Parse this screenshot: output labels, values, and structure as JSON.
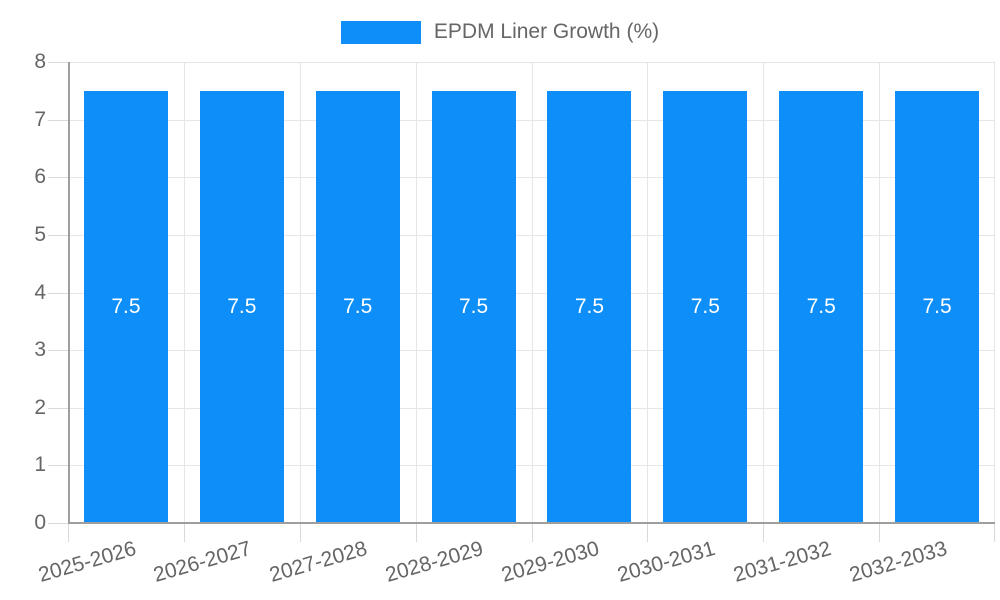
{
  "legend": {
    "label": "EPDM Liner Growth (%)"
  },
  "chart_data": {
    "type": "bar",
    "title": "",
    "categories": [
      "2025-2026",
      "2026-2027",
      "2027-2028",
      "2028-2029",
      "2029-2030",
      "2030-2031",
      "2031-2032",
      "2032-2033"
    ],
    "series": [
      {
        "name": "EPDM Liner Growth (%)",
        "values": [
          7.5,
          7.5,
          7.5,
          7.5,
          7.5,
          7.5,
          7.5,
          7.5
        ]
      }
    ],
    "bar_labels": [
      "7.5",
      "7.5",
      "7.5",
      "7.5",
      "7.5",
      "7.5",
      "7.5",
      "7.5"
    ],
    "xlabel": "",
    "ylabel": "",
    "ylim": [
      0,
      8
    ],
    "yticks": [
      0,
      1,
      2,
      3,
      4,
      5,
      6,
      7,
      8
    ],
    "grid": true,
    "legend_position": "top-center",
    "x_label_rotation_deg": -16,
    "colors": {
      "bar": "#0d8ef8",
      "grid": "#e6e6e6",
      "axis": "#9e9e9e",
      "tick": "#d9d9d9",
      "text": "#666666",
      "bar_label": "#ffffff",
      "background": "#ffffff"
    }
  }
}
